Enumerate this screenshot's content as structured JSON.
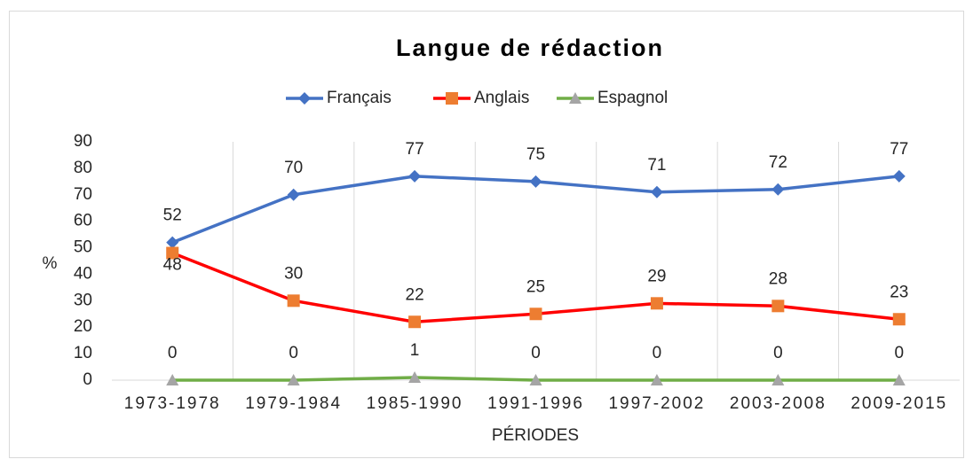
{
  "chart_data": {
    "type": "line",
    "title": "Langue de rédaction",
    "x_label": "PÉRIODES",
    "y_label": "%",
    "categories": [
      "1973-1978",
      "1979-1984",
      "1985-1990",
      "1991-1996",
      "1997-2002",
      "2003-2008",
      "2009-2015"
    ],
    "series": [
      {
        "name": "Français",
        "color": "#4472c4",
        "marker": "diamond",
        "marker_color": "#4472c4",
        "values": [
          52,
          70,
          77,
          75,
          71,
          72,
          77
        ]
      },
      {
        "name": "Anglais",
        "color": "#ff0000",
        "marker": "square",
        "marker_color": "#ed7d31",
        "values": [
          48,
          30,
          22,
          25,
          29,
          28,
          23
        ]
      },
      {
        "name": "Espagnol",
        "color": "#70ad47",
        "marker": "triangle",
        "marker_color": "#a5a5a5",
        "values": [
          0,
          0,
          1,
          0,
          0,
          0,
          0
        ]
      }
    ],
    "ylim": [
      0,
      90
    ],
    "yticks": [
      0,
      10,
      20,
      30,
      40,
      50,
      60,
      70,
      80,
      90
    ],
    "legend": "top"
  }
}
